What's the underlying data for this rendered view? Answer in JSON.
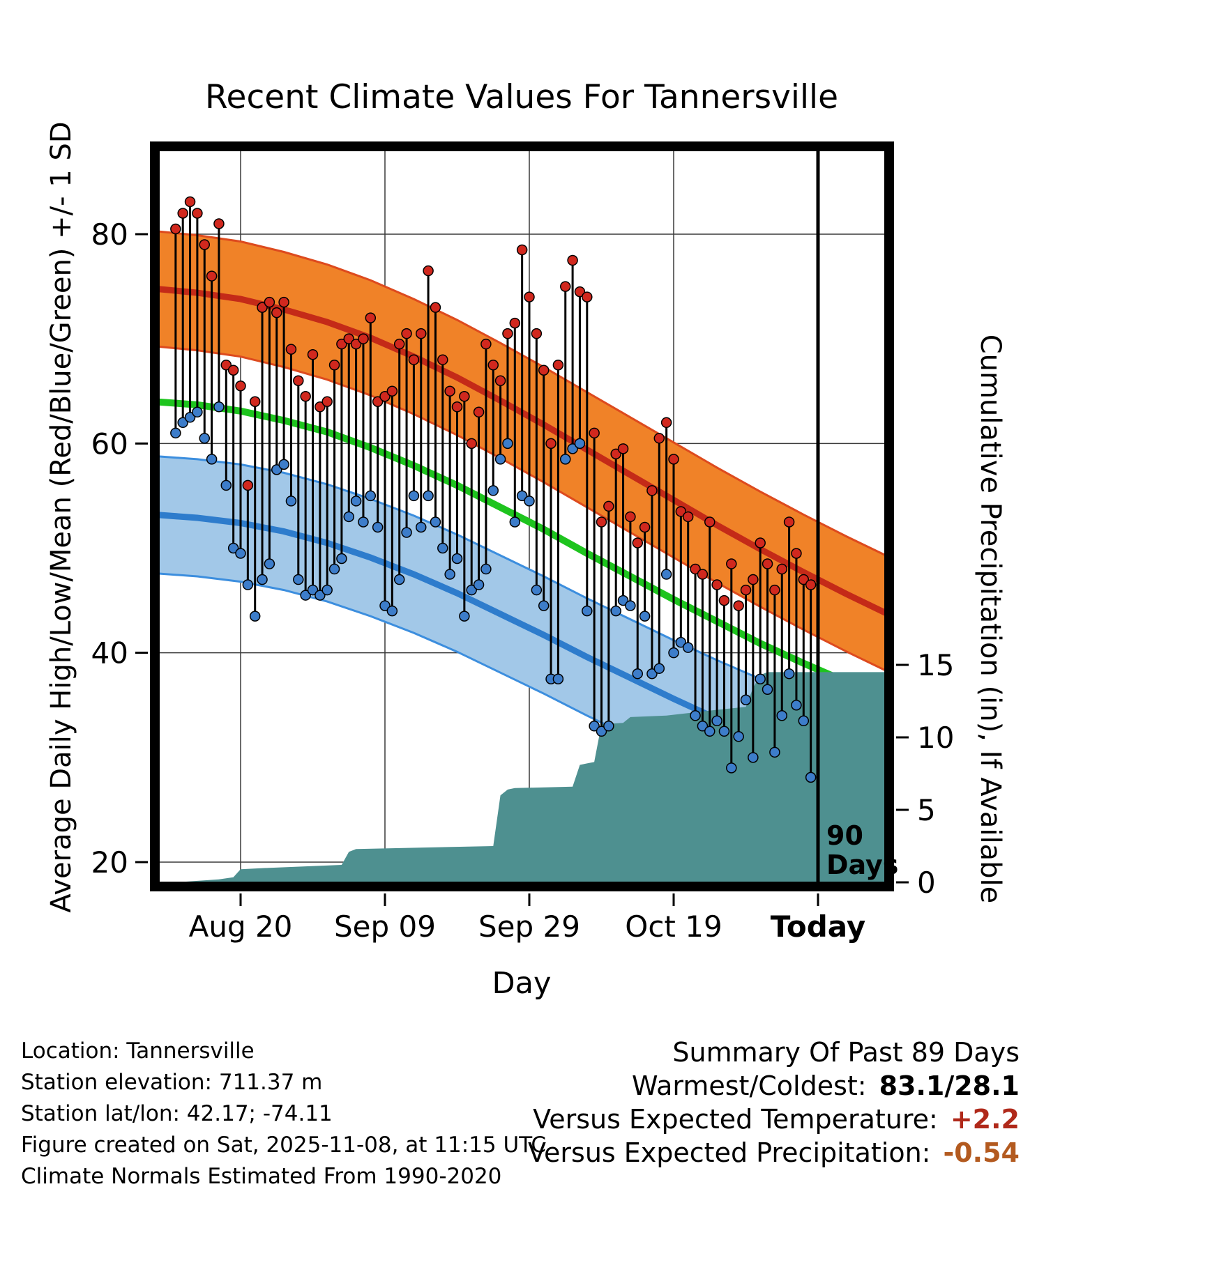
{
  "chart_data": {
    "type": "line",
    "title": "Recent Climate Values For Tannersville",
    "xlabel": "Day",
    "ylabel_left": "Average Daily High/Low/Mean (Red/Blue/Green) +/- 1 SD",
    "ylabel_right": "Cumulative Precipitation (in), If Available",
    "ylim_left": [
      17.6,
      88.4
    ],
    "grid": true,
    "x_ticks": [
      {
        "day": 9,
        "label": "Aug 20",
        "bold": false
      },
      {
        "day": 29,
        "label": "Sep 09",
        "bold": false
      },
      {
        "day": 49,
        "label": "Sep 29",
        "bold": false
      },
      {
        "day": 69,
        "label": "Oct 19",
        "bold": false
      },
      {
        "day": 89,
        "label": "Today",
        "bold": true
      }
    ],
    "y_ticks_left": [
      20,
      40,
      60,
      80
    ],
    "y_ticks_right": [
      0,
      5,
      10,
      15
    ],
    "vline": {
      "day": 89,
      "label_lines": [
        "90",
        "Days"
      ]
    },
    "normals": {
      "days": [
        -3,
        3,
        9,
        15,
        21,
        27,
        33,
        39,
        45,
        51,
        57,
        63,
        69,
        75,
        81,
        87,
        93,
        99
      ],
      "high_mean": [
        74.8,
        74.4,
        73.8,
        72.8,
        71.6,
        70.1,
        68.3,
        66.3,
        64.1,
        61.8,
        59.4,
        57.0,
        54.6,
        52.2,
        49.9,
        47.7,
        45.6,
        43.6
      ],
      "low_mean": [
        53.2,
        52.9,
        52.4,
        51.6,
        50.5,
        49.1,
        47.5,
        45.7,
        43.7,
        41.7,
        39.6,
        37.6,
        35.6,
        33.7,
        31.9,
        30.2,
        28.7,
        27.3
      ],
      "mean": [
        64.0,
        63.7,
        63.1,
        62.2,
        61.1,
        59.6,
        57.9,
        56.0,
        53.9,
        51.8,
        49.5,
        47.3,
        45.1,
        43.0,
        40.9,
        39.0,
        37.2,
        35.5
      ],
      "high_sd": 5.5,
      "low_sd": 5.6
    },
    "daily": {
      "high": [
        80.5,
        82,
        83.1,
        82,
        79,
        76,
        81,
        67.5,
        67,
        65.5,
        56,
        64,
        73,
        73.5,
        72.5,
        73.5,
        69,
        66,
        64.5,
        68.5,
        63.5,
        64,
        67.5,
        69.5,
        70,
        69.5,
        70,
        72,
        64,
        64.5,
        65,
        69.5,
        70.5,
        68,
        70.5,
        76.5,
        73,
        68,
        65,
        63.5,
        64.5,
        60,
        63,
        69.5,
        67.5,
        66,
        70.5,
        71.5,
        78.5,
        74,
        70.5,
        67,
        60,
        67.5,
        75,
        77.5,
        74.5,
        74,
        61,
        52.5,
        54,
        59,
        59.5,
        53,
        50.5,
        52,
        55.5,
        60.5,
        62,
        58.5,
        53.5,
        53,
        48,
        47.5,
        52.5,
        46.5,
        45,
        48.5,
        44.5,
        46,
        47,
        50.5,
        48.5,
        46,
        48,
        52.5,
        49.5,
        47,
        46.5
      ],
      "low": [
        61,
        62,
        62.5,
        63,
        60.5,
        58.5,
        63.5,
        56,
        50,
        49.5,
        46.5,
        43.5,
        47,
        48.5,
        57.5,
        58,
        54.5,
        47,
        45.5,
        46,
        45.5,
        46,
        48,
        49,
        53,
        54.5,
        52.5,
        55,
        52,
        44.5,
        44,
        47,
        51.5,
        55,
        52,
        55,
        52.5,
        50,
        47.5,
        49,
        43.5,
        46,
        46.5,
        48,
        55.5,
        58.5,
        60,
        52.5,
        55,
        54.5,
        46,
        44.5,
        37.5,
        37.5,
        58.5,
        59.5,
        60,
        44,
        33,
        32.5,
        33,
        44,
        45,
        44.5,
        38,
        43.5,
        38,
        38.5,
        47.5,
        40,
        41,
        40.5,
        34,
        33,
        32.5,
        33.5,
        32.5,
        29,
        32,
        35.5,
        30,
        37.5,
        36.5,
        30.5,
        34,
        38,
        35,
        33.5,
        28.1
      ]
    },
    "precip": {
      "days": [
        0,
        6,
        8,
        9,
        13,
        23,
        24,
        25,
        44,
        45,
        46,
        47,
        55,
        56,
        57,
        58,
        59,
        62,
        63,
        68,
        75,
        79,
        80,
        81,
        82,
        99
      ],
      "cumulative": [
        0,
        0.2,
        0.35,
        0.9,
        1.0,
        1.2,
        2.1,
        2.3,
        2.5,
        6.0,
        6.4,
        6.5,
        6.6,
        8.1,
        8.2,
        8.3,
        10.9,
        11.0,
        11.4,
        11.5,
        11.9,
        12.1,
        13.4,
        14.3,
        14.5,
        14.5
      ]
    },
    "colors": {
      "grid": "#3a3a3a",
      "high_band": "#f08228",
      "high_edge": "#dd4a1e",
      "high_line": "#c42a18",
      "low_band": "#a2c8e8",
      "low_edge": "#3c8ede",
      "low_line": "#2e7ccc",
      "mean_line": "#1ec41e",
      "precip": "#4e9090",
      "dot_high": "#d1281e",
      "dot_low": "#3d7dca",
      "stem": "#000000",
      "border": "#000000"
    }
  },
  "footer": {
    "lines": [
      "Location: Tannersville",
      "Station elevation: 711.37 m",
      "Station lat/lon: 42.17; -74.11",
      "Figure created on Sat, 2025-11-08, at 11:15 UTC",
      "Climate Normals Estimated From 1990-2020"
    ]
  },
  "summary": {
    "header": "Summary Of Past 89 Days",
    "rows": [
      {
        "label": "Warmest/Coldest:",
        "value": "83.1/28.1",
        "color": "#000000"
      },
      {
        "label": "Versus Expected Temperature:",
        "value": "+2.2",
        "color": "#b0291a"
      },
      {
        "label": "Versus Expected Precipitation:",
        "value": "-0.54",
        "color": "#b35a1f"
      }
    ]
  }
}
